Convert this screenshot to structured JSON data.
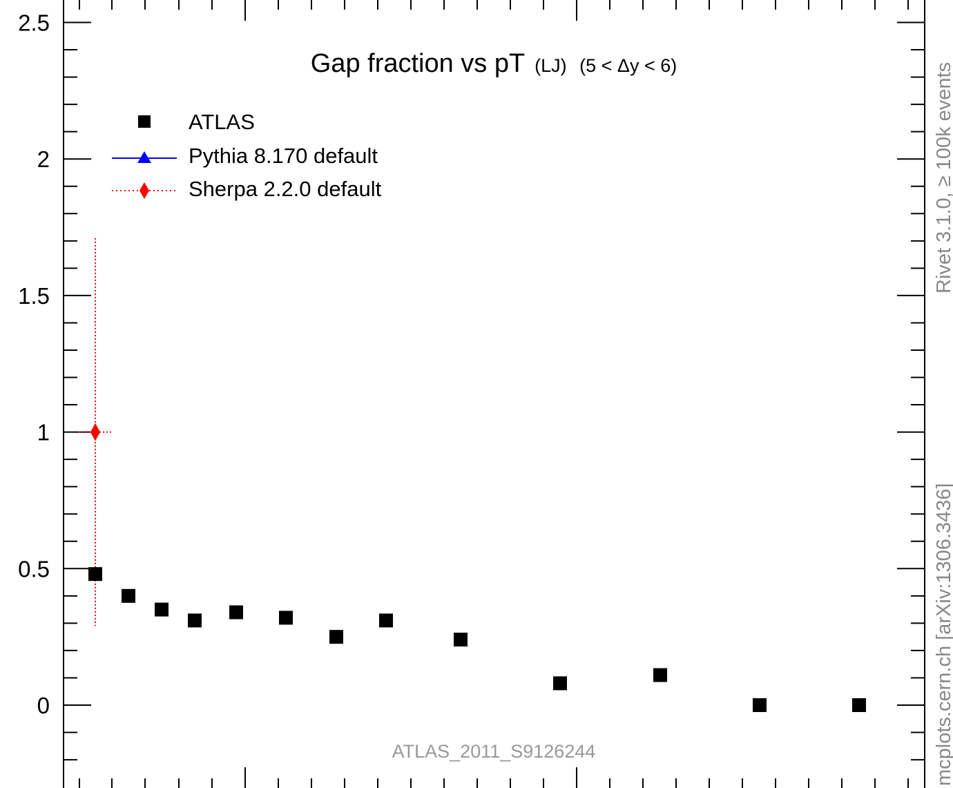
{
  "chart_data": {
    "type": "scatter",
    "title_main": "Gap fraction vs pT",
    "title_sub": "(LJ)",
    "title_range": "(5 < Δy < 6)",
    "ylim": [
      -0.25,
      2.55
    ],
    "y_ticks": [
      "0",
      "0.5",
      "1",
      "1.5",
      "2",
      "2.5"
    ],
    "grid": false,
    "legend_position": "top-left",
    "legend": [
      "ATLAS",
      "Pythia 8.170 default",
      "Sherpa 2.2.0 default"
    ],
    "series": [
      {
        "name": "ATLAS",
        "color": "#000000",
        "marker": "square",
        "x": [
          1,
          2,
          3,
          4,
          5,
          6,
          7,
          8,
          9,
          10,
          11,
          12,
          13
        ],
        "values": [
          0.48,
          0.4,
          0.35,
          0.31,
          0.34,
          0.32,
          0.25,
          0.31,
          0.24,
          0.08,
          0.11,
          0.0,
          0.0
        ]
      },
      {
        "name": "Pythia 8.170 default",
        "color": "#0000ff",
        "marker": "triangle",
        "x": [],
        "values": []
      },
      {
        "name": "Sherpa 2.2.0 default",
        "color": "#ff0000",
        "marker": "diamond",
        "x": [
          1
        ],
        "values": [
          1.0
        ],
        "err_low": [
          0.29
        ],
        "err_high": [
          1.71
        ]
      }
    ],
    "annotations": {
      "analysis": "ATLAS_2011_S9126244",
      "rivet": "Rivet 3.1.0, ≥ 100k events",
      "mcplots": "mcplots.cern.ch [arXiv:1306.3436]"
    }
  }
}
